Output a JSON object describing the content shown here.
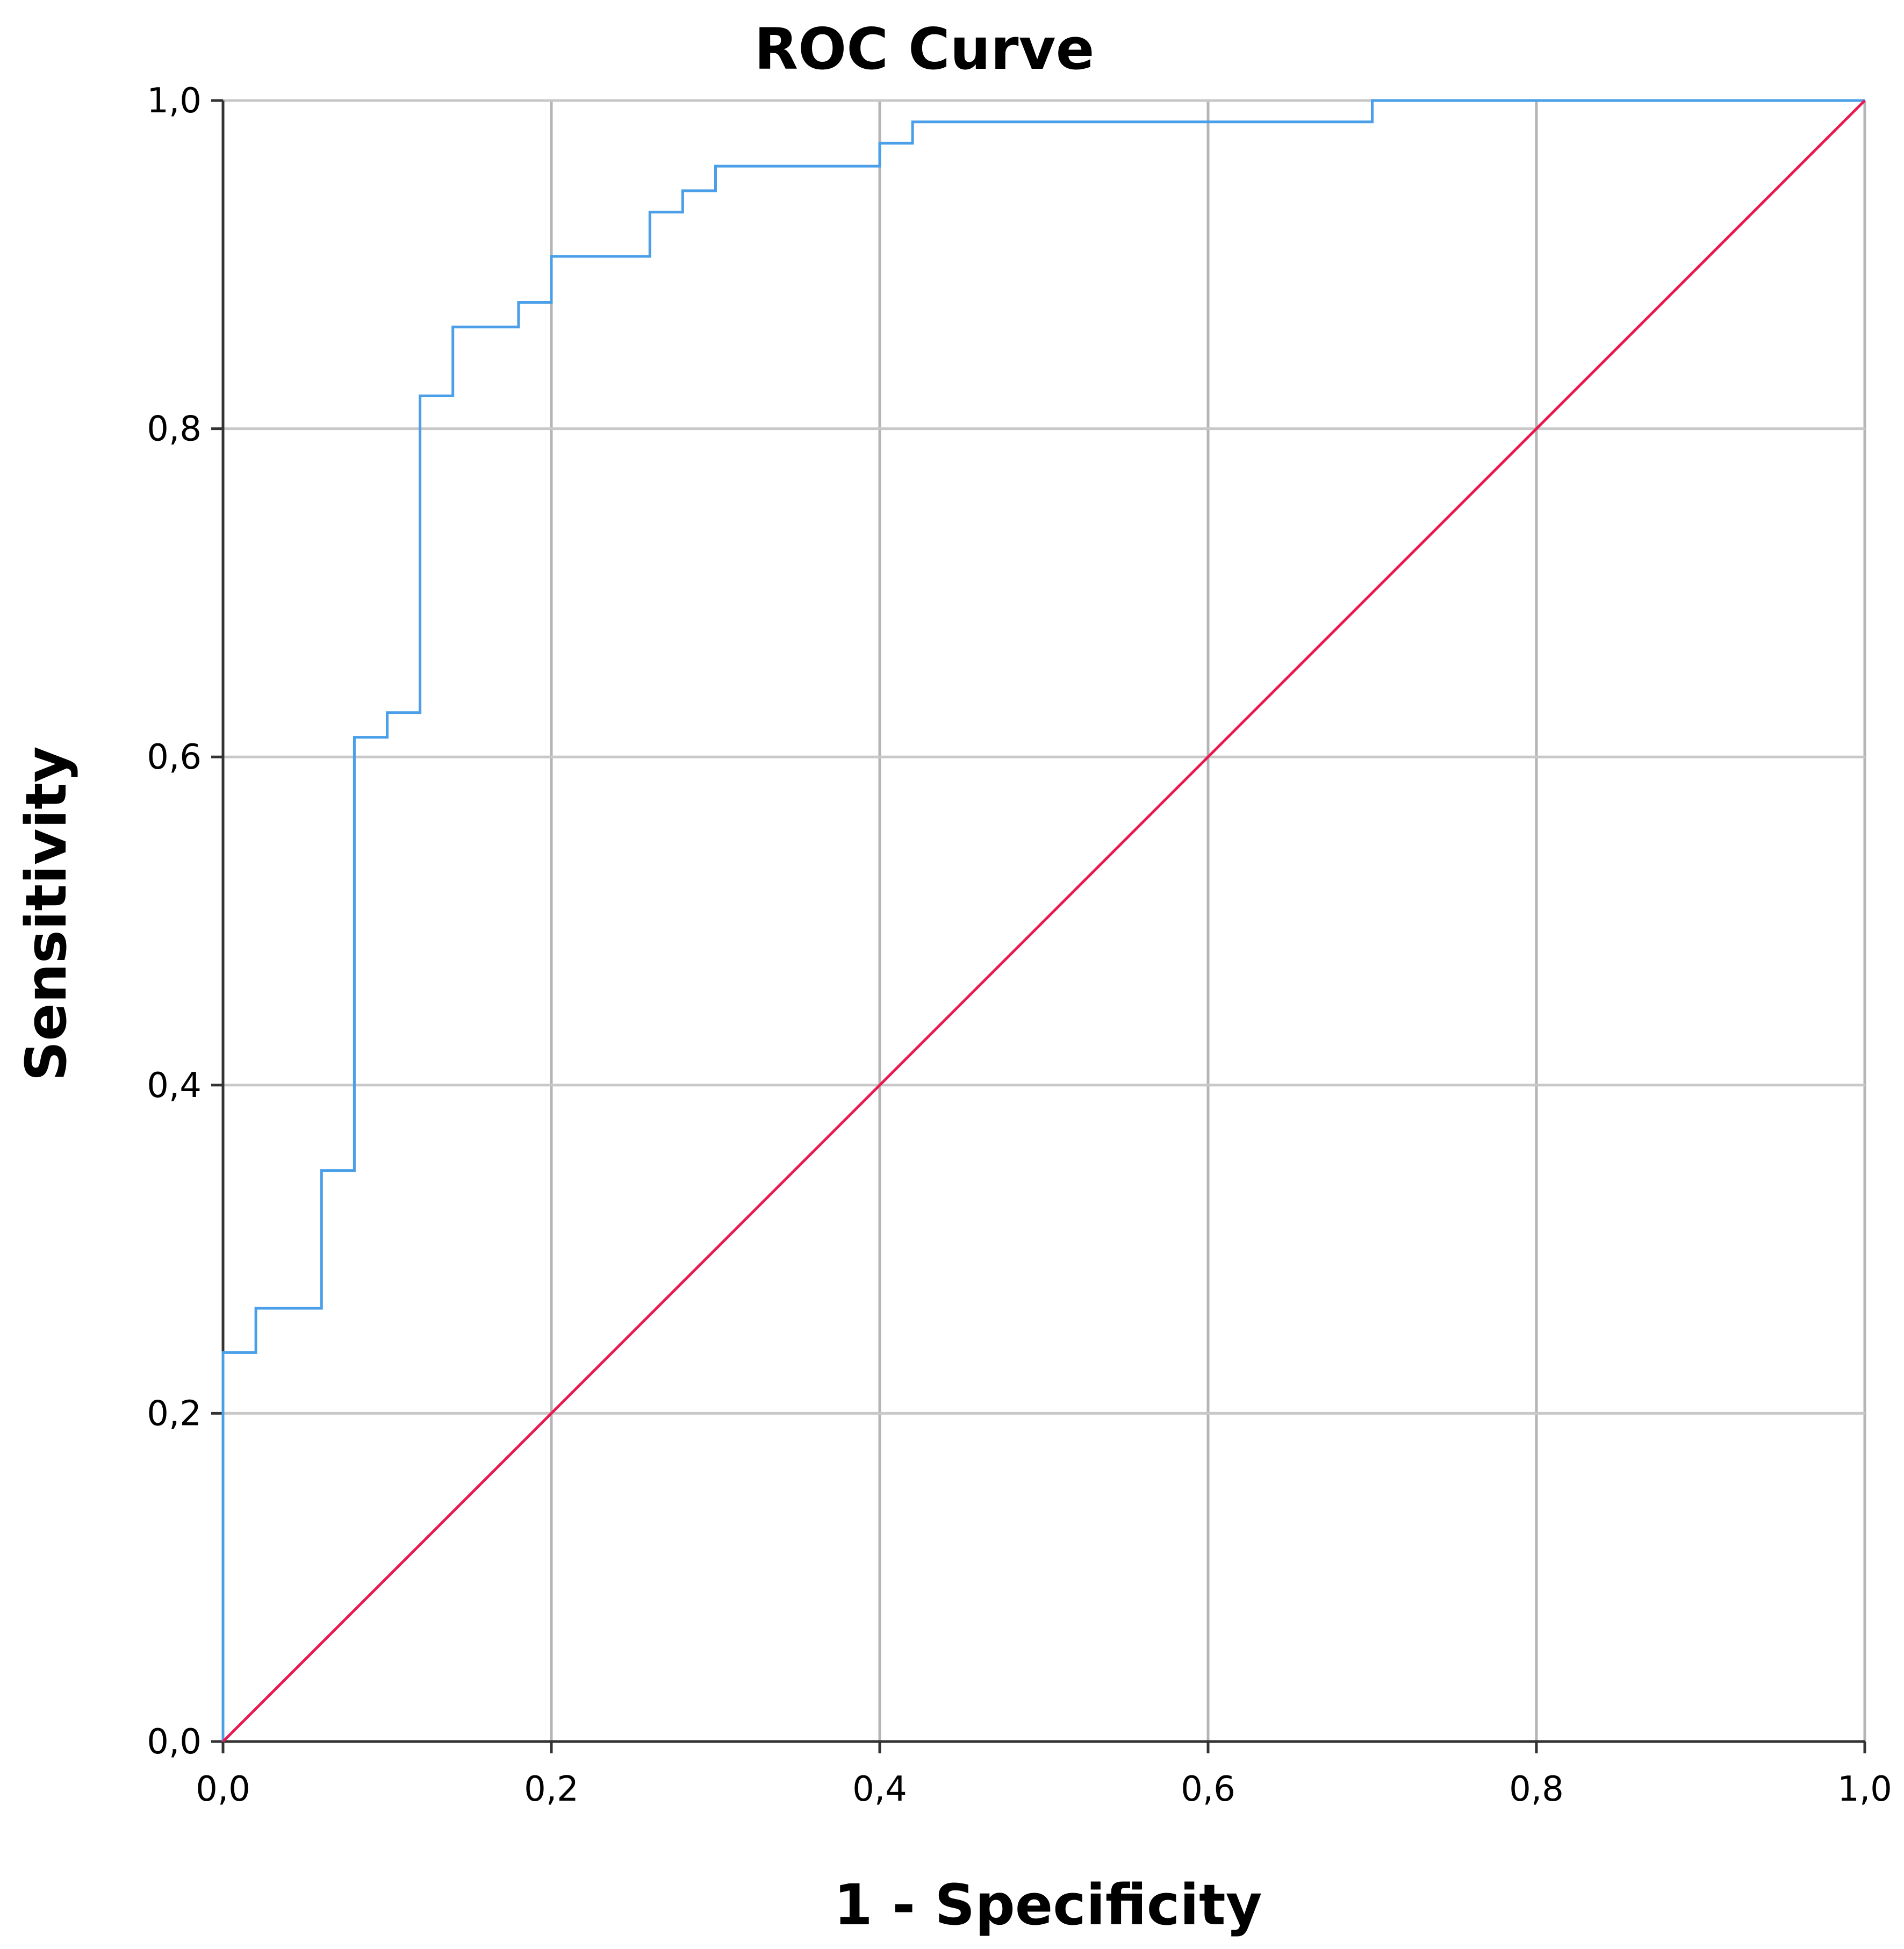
{
  "chart_data": {
    "type": "line",
    "title": "ROC Curve",
    "xlabel": "1 - Specificity",
    "ylabel": "Sensitivity",
    "xlim": [
      0,
      1
    ],
    "ylim": [
      0,
      1
    ],
    "grid": true,
    "x_ticks": [
      "0,0",
      "0,2",
      "0,4",
      "0,6",
      "0,8",
      "1,0"
    ],
    "y_ticks": [
      "0,0",
      "0,2",
      "0,4",
      "0,6",
      "0,8",
      "1,0"
    ],
    "x_tick_values": [
      0,
      0.2,
      0.4,
      0.6,
      0.8,
      1.0
    ],
    "y_tick_values": [
      0,
      0.2,
      0.4,
      0.6,
      0.8,
      1.0
    ],
    "series": [
      {
        "color": "#4a9fe8",
        "step": true,
        "x": [
          0,
          0,
          0.02,
          0.02,
          0.06,
          0.06,
          0.08,
          0.08,
          0.1,
          0.1,
          0.12,
          0.12,
          0.14,
          0.14,
          0.18,
          0.18,
          0.2,
          0.2,
          0.26,
          0.26,
          0.28,
          0.28,
          0.3,
          0.3,
          0.4,
          0.4,
          0.42,
          0.42,
          0.7,
          0.7,
          1.0
        ],
        "y": [
          0,
          0.237,
          0.237,
          0.264,
          0.264,
          0.348,
          0.348,
          0.612,
          0.612,
          0.627,
          0.627,
          0.82,
          0.82,
          0.862,
          0.862,
          0.877,
          0.877,
          0.905,
          0.905,
          0.932,
          0.932,
          0.945,
          0.945,
          0.96,
          0.96,
          0.974,
          0.974,
          0.987,
          0.987,
          1.0,
          1.0
        ]
      },
      {
        "color": "#e8194f",
        "step": false,
        "x": [
          0,
          1
        ],
        "y": [
          0,
          1
        ]
      }
    ]
  }
}
